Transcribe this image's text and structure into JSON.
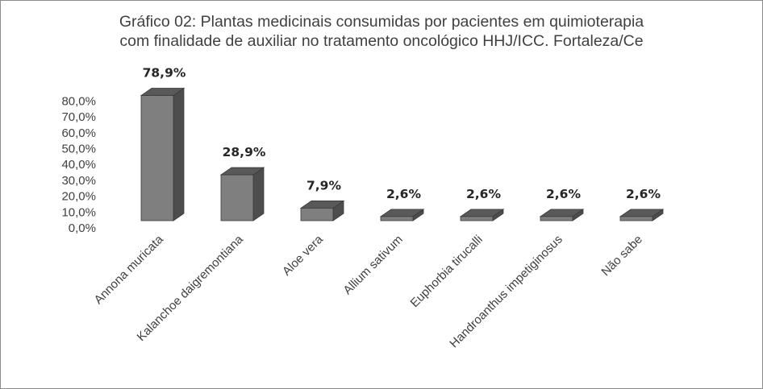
{
  "chart_data": {
    "type": "bar",
    "title_lines": [
      "Gráfico 02: Plantas medicinais consumidas por pacientes em quimioterapia",
      "com finalidade de auxiliar no tratamento oncológico HHJ/ICC. Fortaleza/Ce"
    ],
    "categories": [
      "Annona muricata",
      "Kalanchoe daigremontiana",
      "Aloe vera",
      "Allium sativum",
      "Euphorbia tirucalli",
      "Handroanthus impetiginosus",
      "Não sabe"
    ],
    "values": [
      78.9,
      28.9,
      7.9,
      2.6,
      2.6,
      2.6,
      2.6
    ],
    "data_labels": [
      "78,9%",
      "28,9%",
      "7,9%",
      "2,6%",
      "2,6%",
      "2,6%",
      "2,6%"
    ],
    "yticks": [
      0,
      10,
      20,
      30,
      40,
      50,
      60,
      70,
      80
    ],
    "ytick_labels": [
      "0,0%",
      "10,0%",
      "20,0%",
      "30,0%",
      "40,0%",
      "50,0%",
      "60,0%",
      "70,0%",
      "80,0%"
    ],
    "ylim": [
      0,
      80
    ],
    "style": "3d-column",
    "grid": false,
    "legend": "none",
    "colors": {
      "bar_front": "#7f7f7f",
      "bar_side": "#4d4d4d",
      "bar_top": "#595959",
      "bar_edge": "#3a3a3a"
    }
  }
}
